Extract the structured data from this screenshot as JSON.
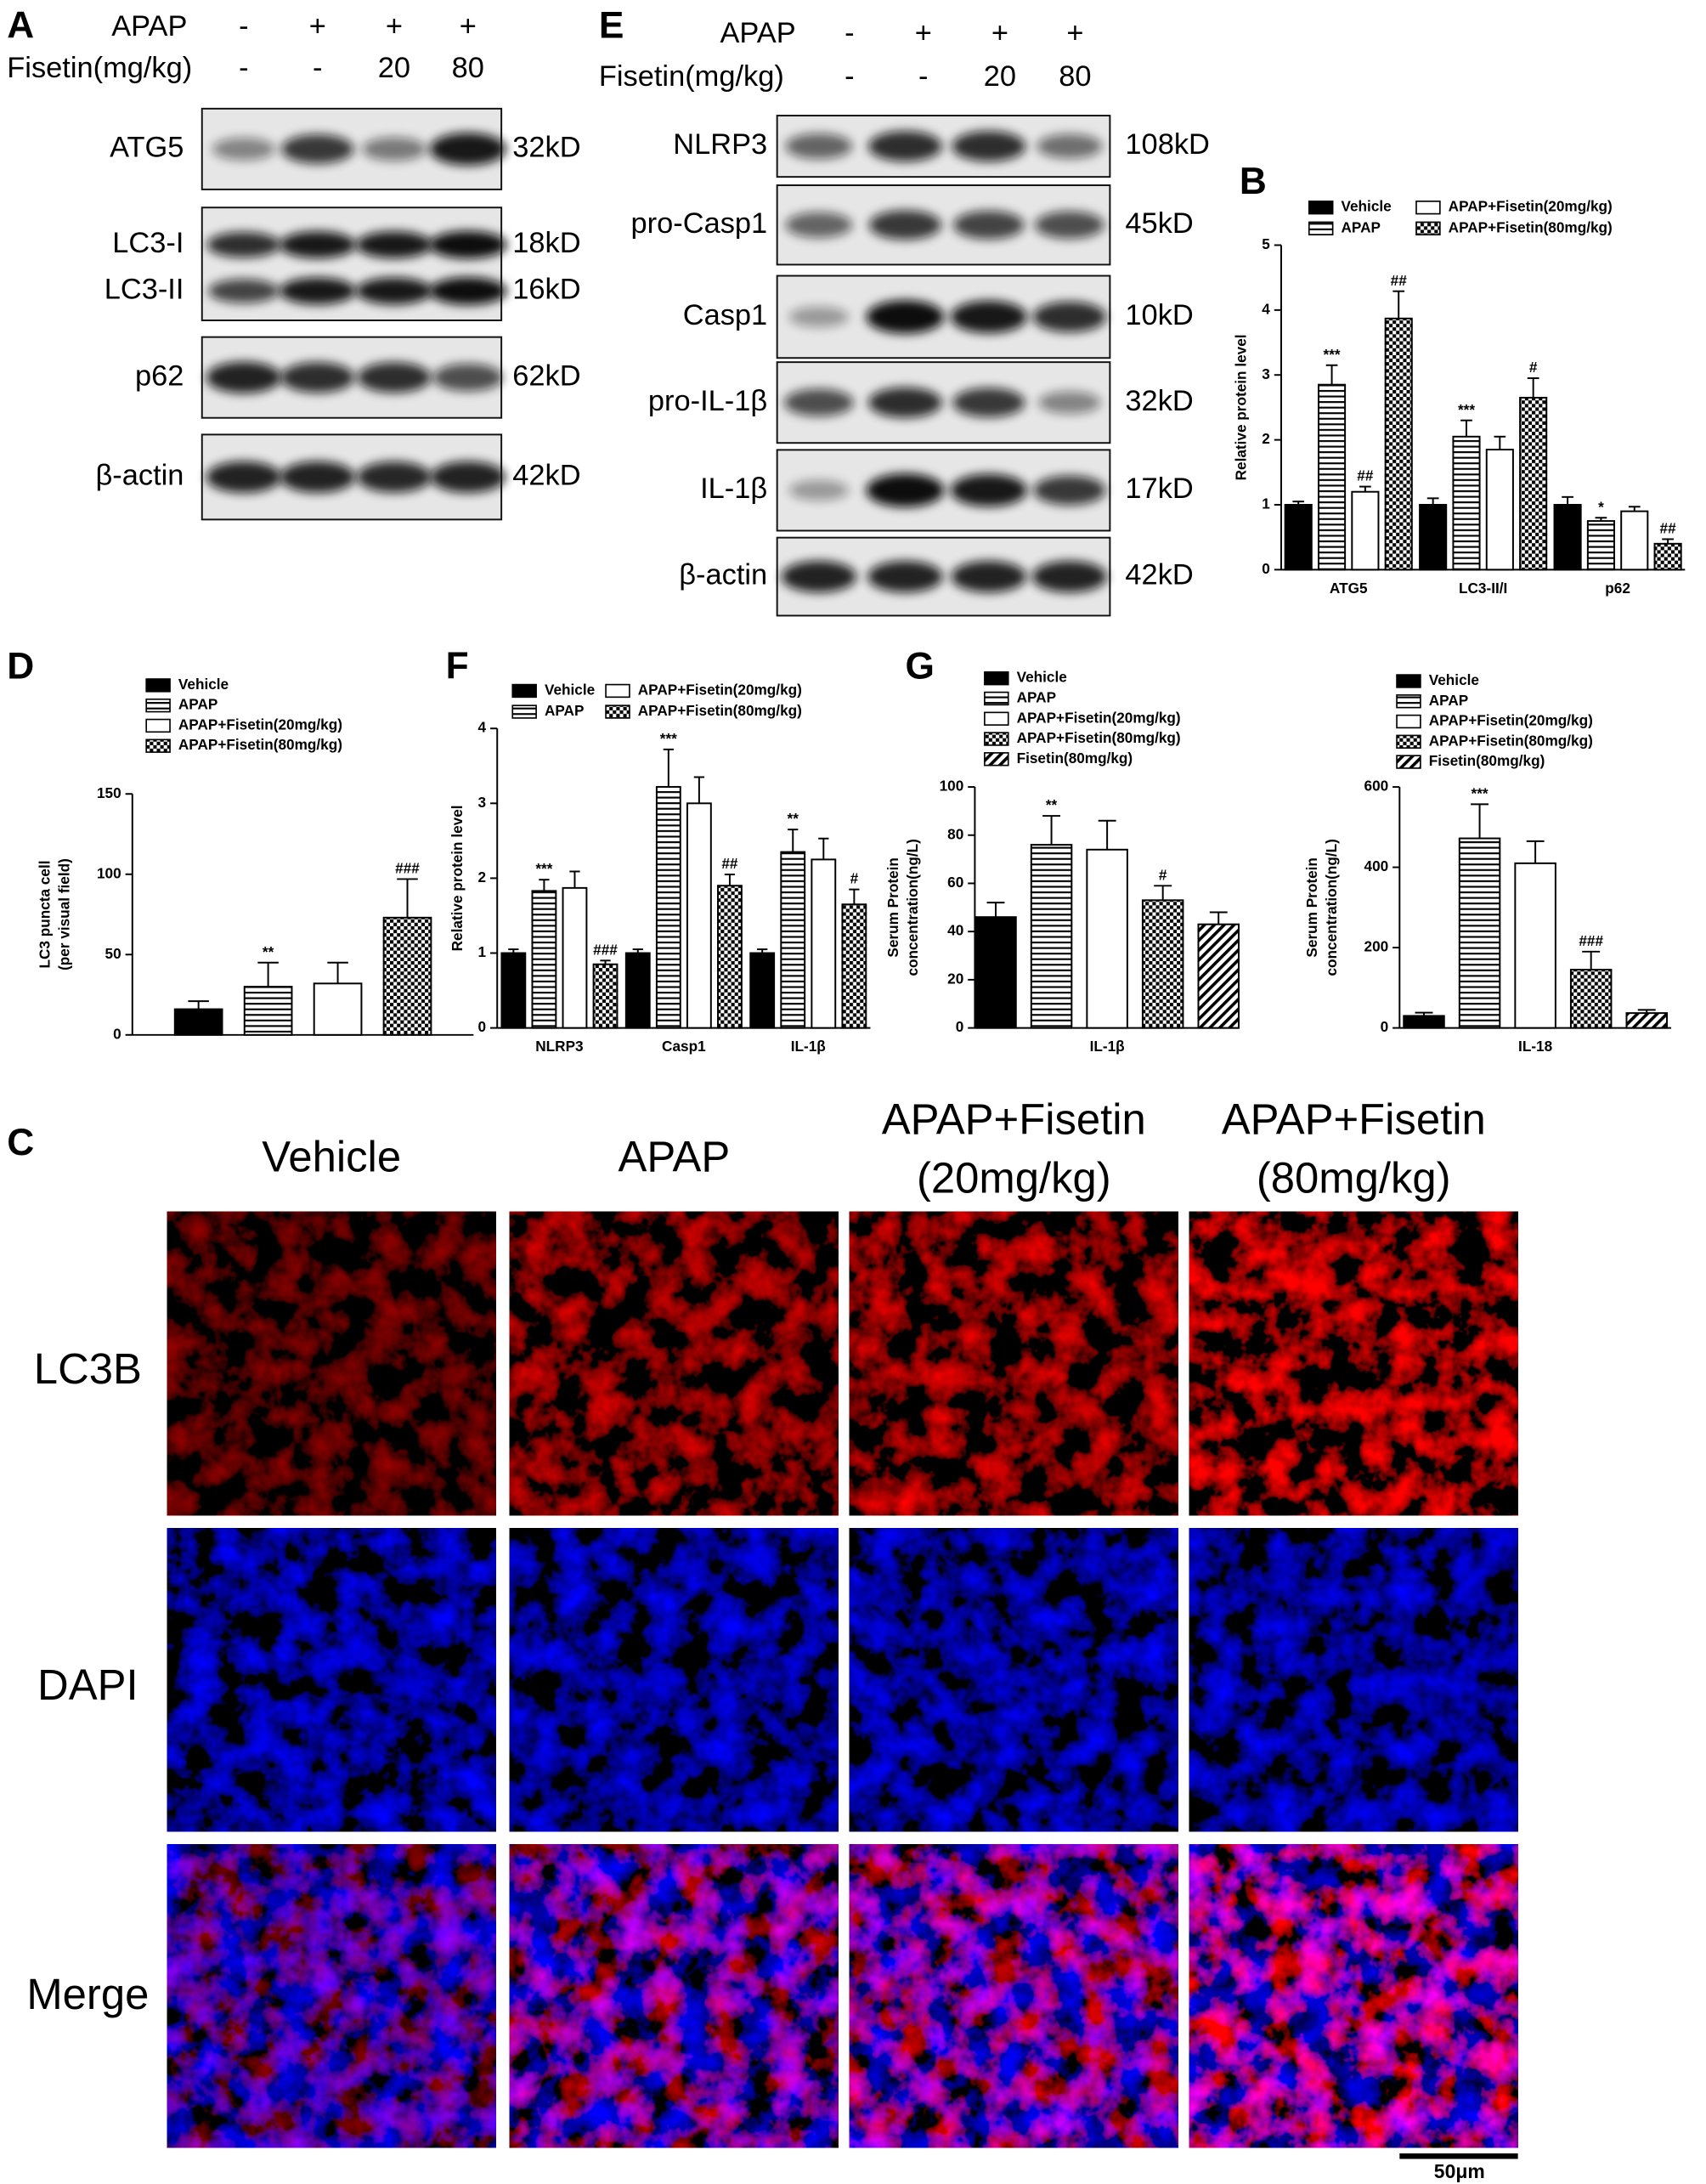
{
  "blots": [
    {
      "panel": "A",
      "apap_label": "APAP",
      "fisetin_label": "Fisetin(mg/kg)",
      "apap": [
        "-",
        "+",
        "+",
        "+"
      ],
      "fisetin": [
        "-",
        "-",
        "20",
        "80"
      ],
      "boxes": [
        [
          {
            "name": "ATG5",
            "size": "32kD"
          }
        ],
        [
          {
            "name": "LC3-I",
            "size": "18kD"
          },
          {
            "name": "LC3-II",
            "size": "16kD"
          }
        ],
        [
          {
            "name": "p62",
            "size": "62kD"
          }
        ],
        [
          {
            "name": "β-actin",
            "size": "42kD"
          }
        ]
      ]
    },
    {
      "panel": "E",
      "apap_label": "APAP",
      "fisetin_label": "Fisetin(mg/kg)",
      "apap": [
        "-",
        "+",
        "+",
        "+"
      ],
      "fisetin": [
        "-",
        "-",
        "20",
        "80"
      ],
      "boxes": [
        [
          {
            "name": "NLRP3",
            "size": "108kD"
          }
        ],
        [
          {
            "name": "pro-Casp1",
            "size": "45kD"
          }
        ],
        [
          {
            "name": "Casp1",
            "size": "10kD"
          }
        ],
        [
          {
            "name": "pro-IL-1β",
            "size": "32kD"
          }
        ],
        [
          {
            "name": "IL-1β",
            "size": "17kD"
          }
        ],
        [
          {
            "name": "β-actin",
            "size": "42kD"
          }
        ]
      ]
    }
  ],
  "chart_data": [
    {
      "type": "bar",
      "panel": "B",
      "ylabel": [
        "Relative protein level"
      ],
      "categories": [
        "ATG5",
        "LC3-II/I",
        "p62"
      ],
      "ylim": [
        0,
        5
      ],
      "yticks": [
        0,
        1,
        2,
        3,
        4,
        5
      ],
      "series": [
        {
          "name": "Vehicle",
          "color": "#000000",
          "pattern": "solid",
          "values": [
            1.0,
            1.0,
            1.0
          ],
          "errors": [
            0.05,
            0.1,
            0.12
          ],
          "annotations": [
            null,
            null,
            null
          ]
        },
        {
          "name": "APAP",
          "color": "#000000",
          "pattern": "hlines",
          "values": [
            2.85,
            2.05,
            0.75
          ],
          "errors": [
            0.3,
            0.25,
            0.05
          ],
          "annotations": [
            "***",
            "***",
            "*"
          ]
        },
        {
          "name": "APAP+Fisetin(20mg/kg)",
          "color": "#000000",
          "pattern": "none",
          "values": [
            1.2,
            1.85,
            0.9
          ],
          "errors": [
            0.08,
            0.2,
            0.07
          ],
          "annotations": [
            "##",
            null,
            null
          ]
        },
        {
          "name": "APAP+Fisetin(80mg/kg)",
          "color": "#000000",
          "pattern": "checker",
          "values": [
            3.87,
            2.65,
            0.4
          ],
          "errors": [
            0.42,
            0.3,
            0.07
          ],
          "annotations": [
            "##",
            "#",
            "##"
          ]
        }
      ]
    },
    {
      "type": "bar",
      "panel": "D",
      "ylabel": [
        "LC3 puncta cell",
        "(per visual field)"
      ],
      "categories": [
        null
      ],
      "ylim": [
        0,
        150
      ],
      "yticks": [
        0,
        50,
        100,
        150
      ],
      "series": [
        {
          "name": "Vehicle",
          "color": "#000000",
          "pattern": "solid",
          "values": [
            16
          ],
          "errors": [
            5
          ],
          "annotations": [
            null
          ]
        },
        {
          "name": "APAP",
          "color": "#000000",
          "pattern": "hlines",
          "values": [
            30
          ],
          "errors": [
            15
          ],
          "annotations": [
            "**"
          ]
        },
        {
          "name": "APAP+Fisetin(20mg/kg)",
          "color": "#000000",
          "pattern": "none",
          "values": [
            32
          ],
          "errors": [
            13
          ],
          "annotations": [
            null
          ]
        },
        {
          "name": "APAP+Fisetin(80mg/kg)",
          "color": "#000000",
          "pattern": "checker",
          "values": [
            73
          ],
          "errors": [
            24
          ],
          "annotations": [
            "###"
          ]
        }
      ]
    },
    {
      "type": "bar",
      "panel": "F",
      "ylabel": [
        "Relative protein level"
      ],
      "categories": [
        "NLRP3",
        "Casp1",
        "IL-1β"
      ],
      "ylim": [
        0,
        4
      ],
      "yticks": [
        0,
        1,
        2,
        3,
        4
      ],
      "series": [
        {
          "name": "Vehicle",
          "color": "#000000",
          "pattern": "solid",
          "values": [
            1.0,
            1.0,
            1.0
          ],
          "errors": [
            0.05,
            0.05,
            0.05
          ],
          "annotations": [
            null,
            null,
            null
          ]
        },
        {
          "name": "APAP",
          "color": "#000000",
          "pattern": "hlines",
          "values": [
            1.83,
            3.22,
            2.35
          ],
          "errors": [
            0.15,
            0.5,
            0.3
          ],
          "annotations": [
            "***",
            "***",
            "**"
          ]
        },
        {
          "name": "APAP+Fisetin(20mg/kg)",
          "color": "#000000",
          "pattern": "none",
          "values": [
            1.87,
            3.0,
            2.25
          ],
          "errors": [
            0.22,
            0.35,
            0.28
          ],
          "annotations": [
            null,
            null,
            null
          ]
        },
        {
          "name": "APAP+Fisetin(80mg/kg)",
          "color": "#000000",
          "pattern": "checker",
          "values": [
            0.85,
            1.9,
            1.65
          ],
          "errors": [
            0.05,
            0.15,
            0.2
          ],
          "annotations": [
            "###",
            "##",
            "#"
          ]
        }
      ]
    },
    {
      "type": "bar",
      "panel": "G",
      "ylabel": [
        "Serum Protein",
        "concentration(ng/L)"
      ],
      "categories": [
        "IL-1β"
      ],
      "ylim": [
        0,
        100
      ],
      "yticks": [
        0,
        20,
        40,
        60,
        80,
        100
      ],
      "series": [
        {
          "name": "Vehicle",
          "color": "#000000",
          "pattern": "solid",
          "values": [
            46
          ],
          "errors": [
            6
          ],
          "annotations": [
            null
          ]
        },
        {
          "name": "APAP",
          "color": "#000000",
          "pattern": "hlines",
          "values": [
            76
          ],
          "errors": [
            12
          ],
          "annotations": [
            "**"
          ]
        },
        {
          "name": "APAP+Fisetin(20mg/kg)",
          "color": "#000000",
          "pattern": "none",
          "values": [
            74
          ],
          "errors": [
            12
          ],
          "annotations": [
            null
          ]
        },
        {
          "name": "APAP+Fisetin(80mg/kg)",
          "color": "#000000",
          "pattern": "checker",
          "values": [
            53
          ],
          "errors": [
            6
          ],
          "annotations": [
            "#"
          ]
        },
        {
          "name": "Fisetin(80mg/kg)",
          "color": "#000000",
          "pattern": "diag",
          "values": [
            43
          ],
          "errors": [
            5
          ],
          "annotations": [
            null
          ]
        }
      ]
    },
    {
      "type": "bar",
      "ylabel": [
        "Serum Protein",
        "concentration(ng/L)"
      ],
      "categories": [
        "IL-18"
      ],
      "ylim": [
        0,
        600
      ],
      "yticks": [
        0,
        200,
        400,
        600
      ],
      "series": [
        {
          "name": "Vehicle",
          "color": "#000000",
          "pattern": "solid",
          "values": [
            30
          ],
          "errors": [
            8
          ],
          "annotations": [
            null
          ]
        },
        {
          "name": "APAP",
          "color": "#000000",
          "pattern": "hlines",
          "values": [
            472
          ],
          "errors": [
            85
          ],
          "annotations": [
            "***"
          ]
        },
        {
          "name": "APAP+Fisetin(20mg/kg)",
          "color": "#000000",
          "pattern": "none",
          "values": [
            410
          ],
          "errors": [
            55
          ],
          "annotations": [
            null
          ]
        },
        {
          "name": "APAP+Fisetin(80mg/kg)",
          "color": "#000000",
          "pattern": "checker",
          "values": [
            145
          ],
          "errors": [
            45
          ],
          "annotations": [
            "###"
          ]
        },
        {
          "name": "Fisetin(80mg/kg)",
          "color": "#000000",
          "pattern": "diag",
          "values": [
            37
          ],
          "errors": [
            8
          ],
          "annotations": [
            null
          ]
        }
      ]
    }
  ],
  "microscopy": {
    "panel": "C",
    "columns": [
      [
        "Vehicle"
      ],
      [
        "APAP"
      ],
      [
        "APAP+Fisetin",
        "(20mg/kg)"
      ],
      [
        "APAP+Fisetin",
        "(80mg/kg)"
      ]
    ],
    "rows": [
      "LC3B",
      "DAPI",
      "Merge"
    ],
    "scale_bar": "50μm"
  }
}
